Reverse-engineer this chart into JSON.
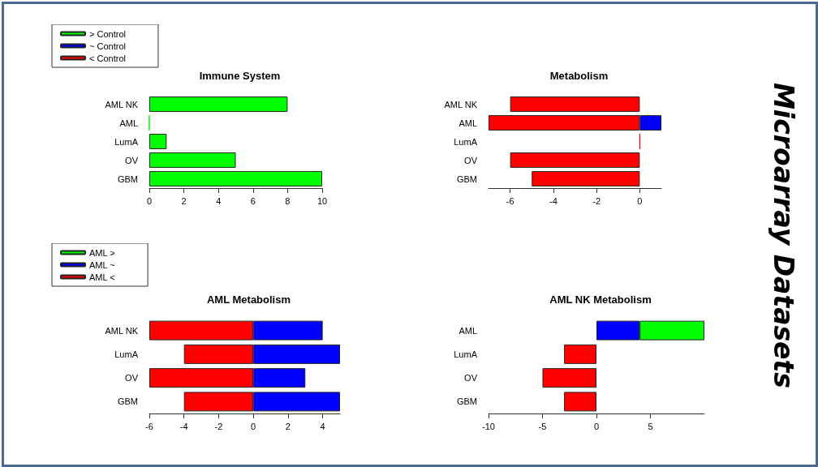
{
  "chart_data": [
    {
      "type": "bar",
      "orientation": "horizontal",
      "stacked": true,
      "title": "Immune System",
      "categories": [
        "AML NK",
        "AML",
        "LumA",
        "OV",
        "GBM"
      ],
      "legend": "top left",
      "xlim": [
        0,
        10
      ],
      "xticks": [
        0,
        2,
        4,
        6,
        8,
        10
      ],
      "series": [
        {
          "name": "> Control",
          "color": "#00ff00",
          "values": [
            8,
            0,
            1,
            5,
            10
          ]
        },
        {
          "name": "~ Control",
          "color": "#0000ff",
          "values": [
            null,
            null,
            null,
            null,
            null
          ]
        },
        {
          "name": "< Control",
          "color": "#ff0000",
          "values": [
            null,
            null,
            null,
            null,
            null
          ]
        }
      ]
    },
    {
      "type": "bar",
      "orientation": "horizontal",
      "stacked": true,
      "title": "Metabolism",
      "categories": [
        "AML NK",
        "AML",
        "LumA",
        "OV",
        "GBM"
      ],
      "xlim": [
        -7,
        1
      ],
      "xticks": [
        -6,
        -4,
        -2,
        0
      ],
      "series": [
        {
          "color": "#ff0000",
          "values": [
            -6,
            -7,
            0,
            -6,
            -5
          ]
        },
        {
          "color": "#0000ff",
          "values": [
            null,
            1,
            null,
            null,
            null
          ]
        }
      ]
    },
    {
      "type": "bar",
      "orientation": "horizontal",
      "stacked": true,
      "title": "AML Metabolism",
      "categories": [
        "AML NK",
        "LumA",
        "OV",
        "GBM"
      ],
      "legend": "top left",
      "xlim": [
        -6,
        5
      ],
      "xticks": [
        -6,
        -4,
        -2,
        0,
        2,
        4
      ],
      "series": [
        {
          "name": "AML >",
          "color": "#00ff00",
          "values": [
            null,
            null,
            null,
            null
          ]
        },
        {
          "name": "AML ~",
          "color": "#0000ff",
          "values": [
            4,
            5,
            3,
            5
          ]
        },
        {
          "name": "AML <",
          "color": "#ff0000",
          "values": [
            -6,
            -4,
            -6,
            -4
          ]
        }
      ]
    },
    {
      "type": "bar",
      "orientation": "horizontal",
      "stacked": true,
      "title": "AML NK Metabolism",
      "categories": [
        "AML",
        "LumA",
        "OV",
        "GBM"
      ],
      "xlim": [
        -10,
        10
      ],
      "xticks": [
        -10,
        -5,
        0,
        5
      ],
      "series": [
        {
          "color": "#0000ff",
          "values": [
            4,
            null,
            null,
            null
          ]
        },
        {
          "color": "#00ff00",
          "values": [
            6,
            null,
            null,
            null
          ]
        },
        {
          "color": "#ff0000",
          "values": [
            null,
            -3,
            -5,
            -3
          ]
        }
      ]
    },
    {
      "type": "other",
      "title": "Microarray Datasets"
    }
  ]
}
